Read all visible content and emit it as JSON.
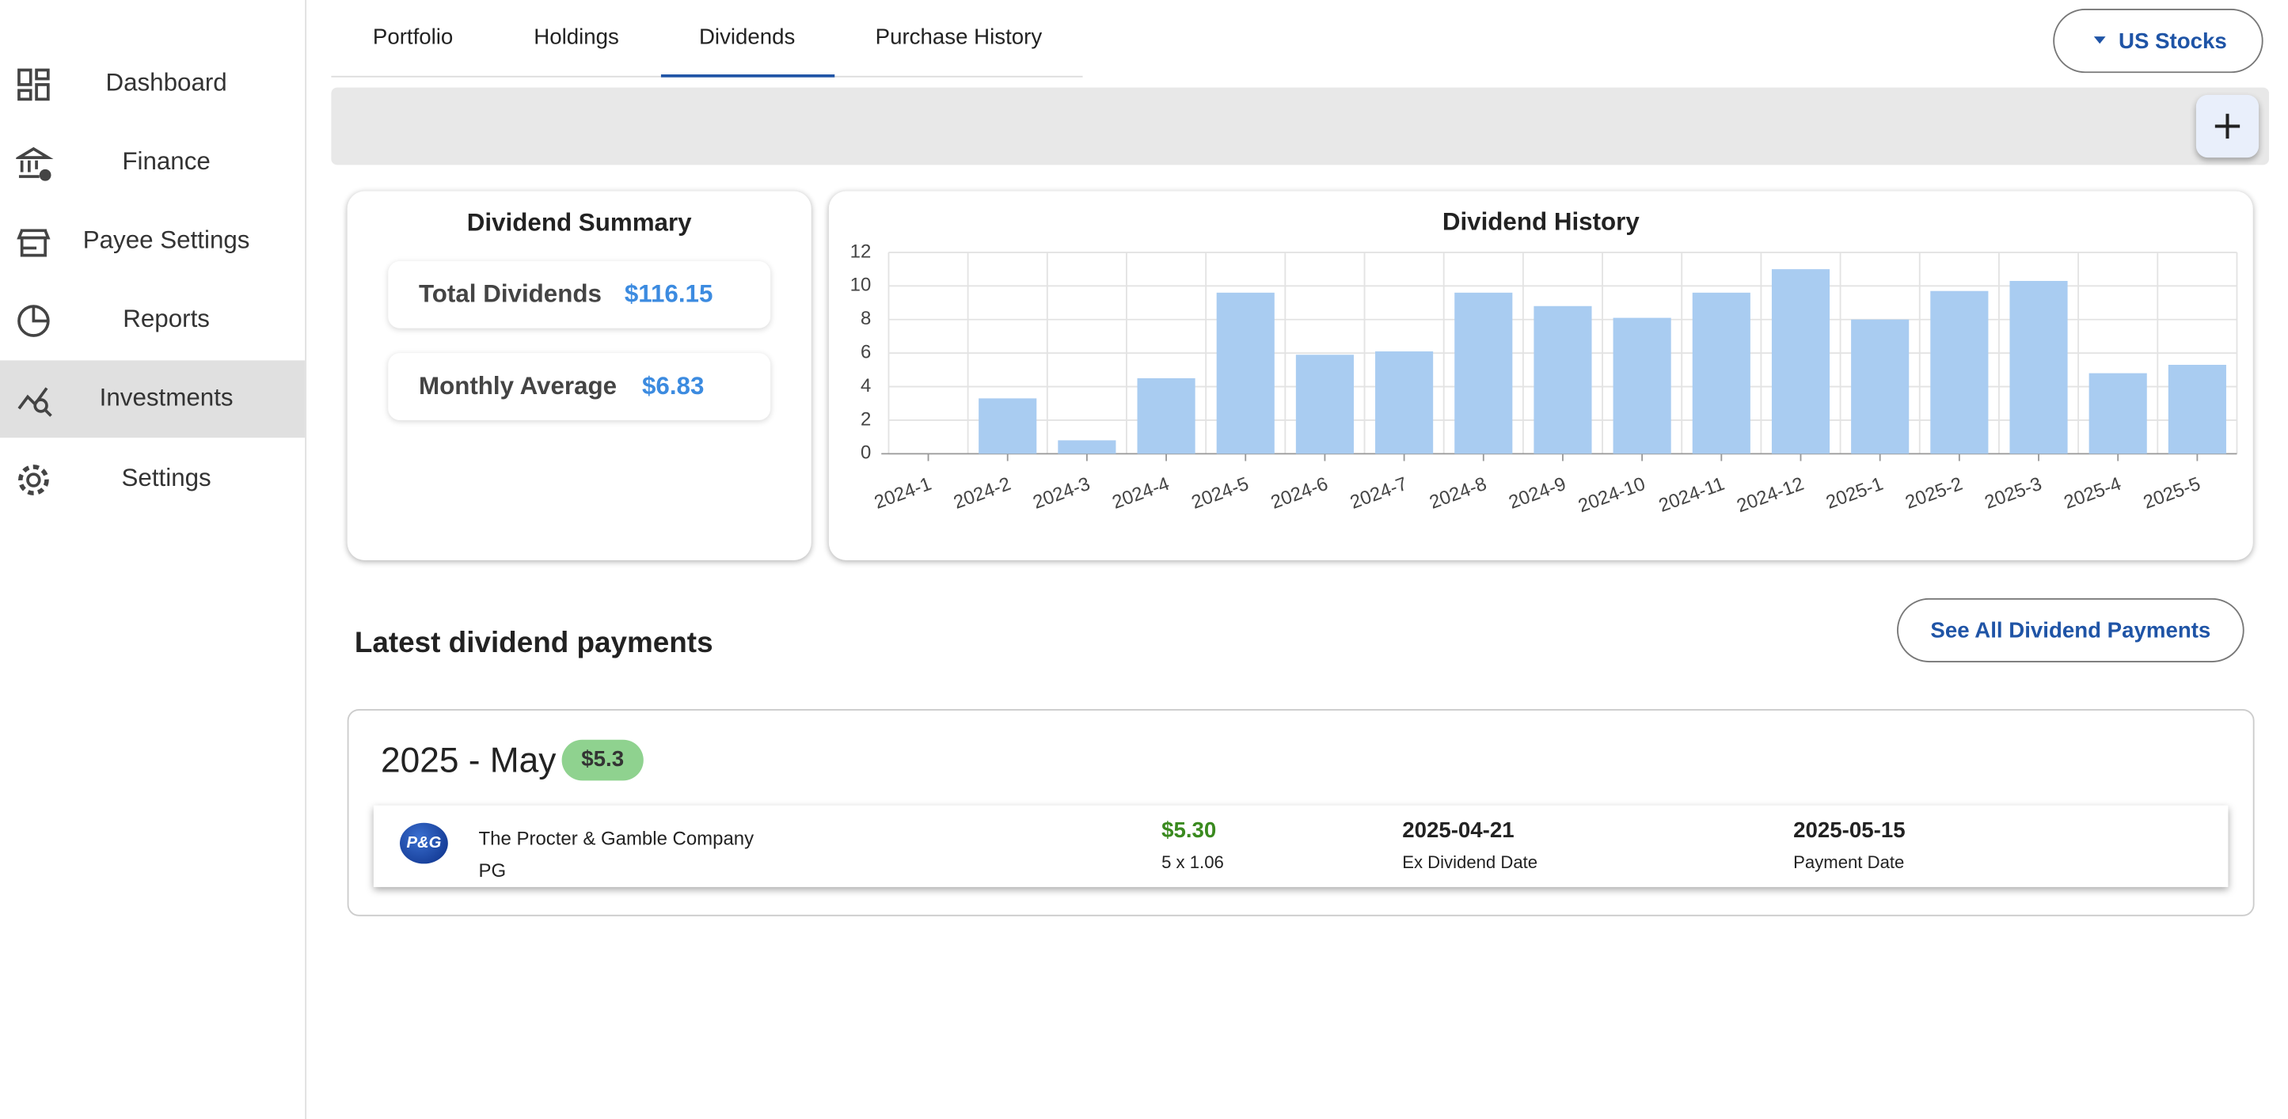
{
  "sidebar": {
    "items": [
      "Dashboard",
      "Finance",
      "Payee Settings",
      "Reports",
      "Investments",
      "Settings"
    ]
  },
  "tabs": [
    "Portfolio",
    "Holdings",
    "Dividends",
    "Purchase History"
  ],
  "market_selector": "US Stocks",
  "summary": {
    "title": "Dividend Summary",
    "rows": [
      {
        "label": "Total Dividends",
        "value": "$116.15"
      },
      {
        "label": "Monthly Average",
        "value": "$6.83"
      }
    ]
  },
  "chart_data": {
    "type": "bar",
    "title": "Dividend History",
    "categories": [
      "2024-1",
      "2024-2",
      "2024-3",
      "2024-4",
      "2024-5",
      "2024-6",
      "2024-7",
      "2024-8",
      "2024-9",
      "2024-10",
      "2024-11",
      "2024-12",
      "2025-1",
      "2025-2",
      "2025-3",
      "2025-4",
      "2025-5"
    ],
    "values": [
      0,
      3.3,
      0.8,
      4.5,
      9.6,
      5.9,
      6.1,
      9.6,
      8.8,
      8.1,
      9.6,
      11.0,
      8.0,
      9.7,
      10.3,
      4.8,
      5.3
    ],
    "color": "#a9ccf1",
    "ylim": [
      0,
      12
    ],
    "yticks": [
      0,
      2,
      4,
      6,
      8,
      10,
      12
    ],
    "grid": true
  },
  "latest": {
    "title": "Latest dividend payments",
    "see_all": "See All Dividend Payments",
    "groups": [
      {
        "period": "2025 - May",
        "total": "$5.3",
        "payments": [
          {
            "logo": "P&G",
            "company": "The Procter & Gamble Company",
            "ticker": "PG",
            "amount": "$5.30",
            "calculation": "5 x 1.06",
            "ex_date": "2025-04-21",
            "ex_date_label": "Ex Dividend Date",
            "payment_date": "2025-05-15",
            "payment_date_label": "Payment Date"
          }
        ]
      }
    ]
  }
}
